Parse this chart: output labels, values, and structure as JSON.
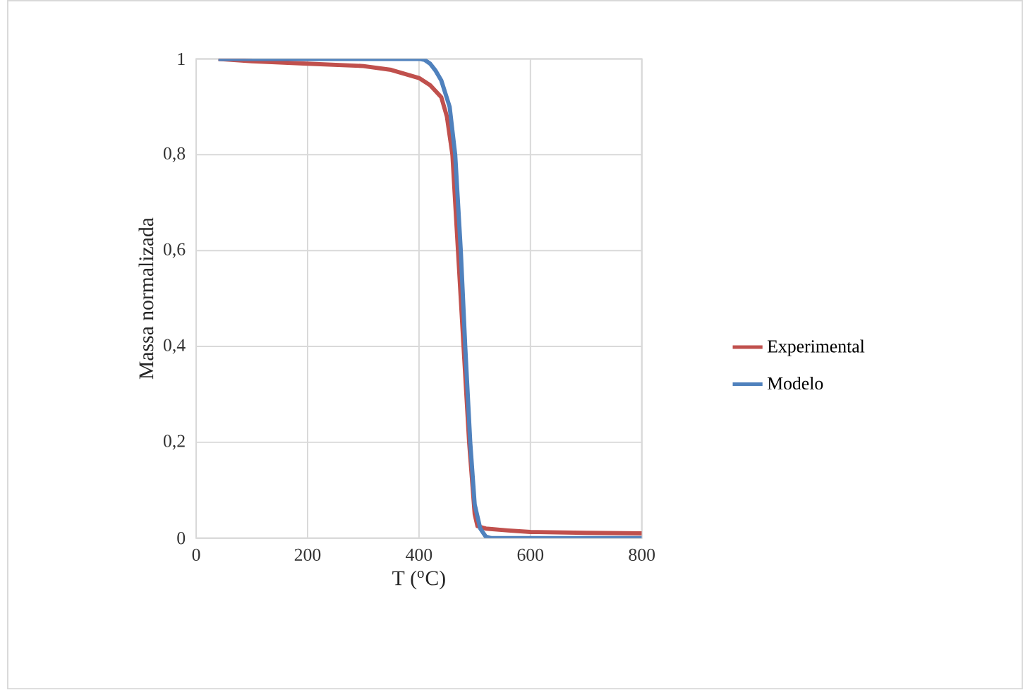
{
  "chart_data": {
    "type": "line",
    "xlabel": "T ($^{o}$C)",
    "ylabel": "Massa normalizada",
    "xlim": [
      0,
      800
    ],
    "ylim": [
      0,
      1
    ],
    "xticks": [
      0,
      200,
      400,
      600,
      800
    ],
    "yticks": [
      0,
      {
        "value": 0.2,
        "label": "0,2"
      },
      {
        "value": 0.4,
        "label": "0,4"
      },
      {
        "value": 0.6,
        "label": "0,6"
      },
      {
        "value": 0.8,
        "label": "0,8"
      },
      1
    ],
    "grid": true,
    "legend": "right",
    "marker": "none",
    "line_style": "solid",
    "series": [
      {
        "name": "Experimental",
        "color": "#c0504d",
        "x": [
          40,
          100,
          200,
          300,
          350,
          400,
          420,
          440,
          450,
          460,
          470,
          480,
          490,
          500,
          505,
          520,
          560,
          600,
          700,
          800
        ],
        "values": [
          1,
          0.995,
          0.99,
          0.985,
          0.977,
          0.96,
          0.945,
          0.92,
          0.88,
          0.8,
          0.6,
          0.4,
          0.2,
          0.05,
          0.025,
          0.02,
          0.016,
          0.013,
          0.011,
          0.01
        ]
      },
      {
        "name": "Modelo",
        "color": "#4f81bd",
        "x": [
          40,
          200,
          400,
          410,
          420,
          430,
          440,
          455,
          465,
          475,
          483,
          492,
          500,
          510,
          520,
          530,
          600,
          800
        ],
        "values": [
          1,
          1,
          1,
          0.998,
          0.99,
          0.975,
          0.955,
          0.9,
          0.8,
          0.6,
          0.4,
          0.2,
          0.07,
          0.02,
          0.003,
          0,
          0,
          0
        ]
      }
    ]
  }
}
